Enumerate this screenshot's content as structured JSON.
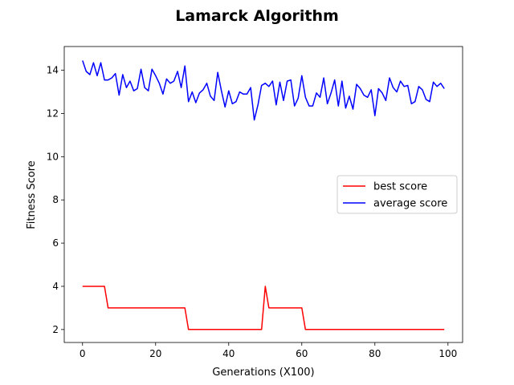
{
  "chart_data": {
    "type": "line",
    "title": "Lamarck Algorithm",
    "xlabel": "Generations (X100)",
    "ylabel": "Fitness Score",
    "xlim": [
      -5,
      104
    ],
    "ylim": [
      1.4,
      15.1
    ],
    "xticks": [
      0,
      20,
      40,
      60,
      80,
      100
    ],
    "yticks": [
      2,
      4,
      6,
      8,
      10,
      12,
      14
    ],
    "grid": false,
    "legend_position": "center-right",
    "series": [
      {
        "name": "best score",
        "color": "#ff0000",
        "x": [
          0,
          1,
          2,
          3,
          4,
          5,
          6,
          7,
          8,
          9,
          10,
          11,
          12,
          13,
          14,
          15,
          16,
          17,
          18,
          19,
          20,
          21,
          22,
          23,
          24,
          25,
          26,
          27,
          28,
          29,
          30,
          31,
          32,
          33,
          34,
          35,
          36,
          37,
          38,
          39,
          40,
          41,
          42,
          43,
          44,
          45,
          46,
          47,
          48,
          49,
          50,
          51,
          52,
          53,
          54,
          55,
          56,
          57,
          58,
          59,
          60,
          61,
          62,
          63,
          64,
          65,
          66,
          67,
          68,
          69,
          70,
          71,
          72,
          73,
          74,
          75,
          76,
          77,
          78,
          79,
          80,
          81,
          82,
          83,
          84,
          85,
          86,
          87,
          88,
          89,
          90,
          91,
          92,
          93,
          94,
          95,
          96,
          97,
          98,
          99
        ],
        "values": [
          4,
          4,
          4,
          4,
          4,
          4,
          4,
          3,
          3,
          3,
          3,
          3,
          3,
          3,
          3,
          3,
          3,
          3,
          3,
          3,
          3,
          3,
          3,
          3,
          3,
          3,
          3,
          3,
          3,
          2,
          2,
          2,
          2,
          2,
          2,
          2,
          2,
          2,
          2,
          2,
          2,
          2,
          2,
          2,
          2,
          2,
          2,
          2,
          2,
          2,
          4,
          3,
          3,
          3,
          3,
          3,
          3,
          3,
          3,
          3,
          3,
          2,
          2,
          2,
          2,
          2,
          2,
          2,
          2,
          2,
          2,
          2,
          2,
          2,
          2,
          2,
          2,
          2,
          2,
          2,
          2,
          2,
          2,
          2,
          2,
          2,
          2,
          2,
          2,
          2,
          2,
          2,
          2,
          2,
          2,
          2,
          2,
          2,
          2,
          2
        ]
      },
      {
        "name": "average score",
        "color": "#0000ff",
        "x": [
          0,
          1,
          2,
          3,
          4,
          5,
          6,
          7,
          8,
          9,
          10,
          11,
          12,
          13,
          14,
          15,
          16,
          17,
          18,
          19,
          20,
          21,
          22,
          23,
          24,
          25,
          26,
          27,
          28,
          29,
          30,
          31,
          32,
          33,
          34,
          35,
          36,
          37,
          38,
          39,
          40,
          41,
          42,
          43,
          44,
          45,
          46,
          47,
          48,
          49,
          50,
          51,
          52,
          53,
          54,
          55,
          56,
          57,
          58,
          59,
          60,
          61,
          62,
          63,
          64,
          65,
          66,
          67,
          68,
          69,
          70,
          71,
          72,
          73,
          74,
          75,
          76,
          77,
          78,
          79,
          80,
          81,
          82,
          83,
          84,
          85,
          86,
          87,
          88,
          89,
          90,
          91,
          92,
          93,
          94,
          95,
          96,
          97,
          98,
          99
        ],
        "values": [
          14.45,
          13.95,
          13.8,
          14.35,
          13.75,
          14.35,
          13.55,
          13.55,
          13.65,
          13.85,
          12.85,
          13.8,
          13.2,
          13.5,
          13.05,
          13.15,
          14.05,
          13.2,
          13.05,
          14.05,
          13.75,
          13.4,
          12.9,
          13.6,
          13.4,
          13.5,
          13.95,
          13.2,
          14.2,
          12.55,
          13.0,
          12.5,
          12.95,
          13.1,
          13.4,
          12.8,
          12.6,
          13.9,
          13.05,
          12.3,
          13.05,
          12.45,
          12.55,
          13.0,
          12.9,
          12.9,
          13.2,
          11.7,
          12.4,
          13.3,
          13.4,
          13.25,
          13.5,
          12.4,
          13.45,
          12.6,
          13.5,
          13.55,
          12.35,
          12.7,
          13.75,
          12.75,
          12.35,
          12.35,
          12.95,
          12.75,
          13.65,
          12.45,
          12.95,
          13.55,
          12.35,
          13.5,
          12.25,
          12.8,
          12.2,
          13.35,
          13.15,
          12.85,
          12.75,
          13.1,
          11.9,
          13.15,
          12.95,
          12.6,
          13.65,
          13.2,
          13.0,
          13.5,
          13.25,
          13.3,
          12.45,
          12.55,
          13.25,
          13.1,
          12.65,
          12.55,
          13.45,
          13.25,
          13.4,
          13.15
        ]
      }
    ]
  }
}
